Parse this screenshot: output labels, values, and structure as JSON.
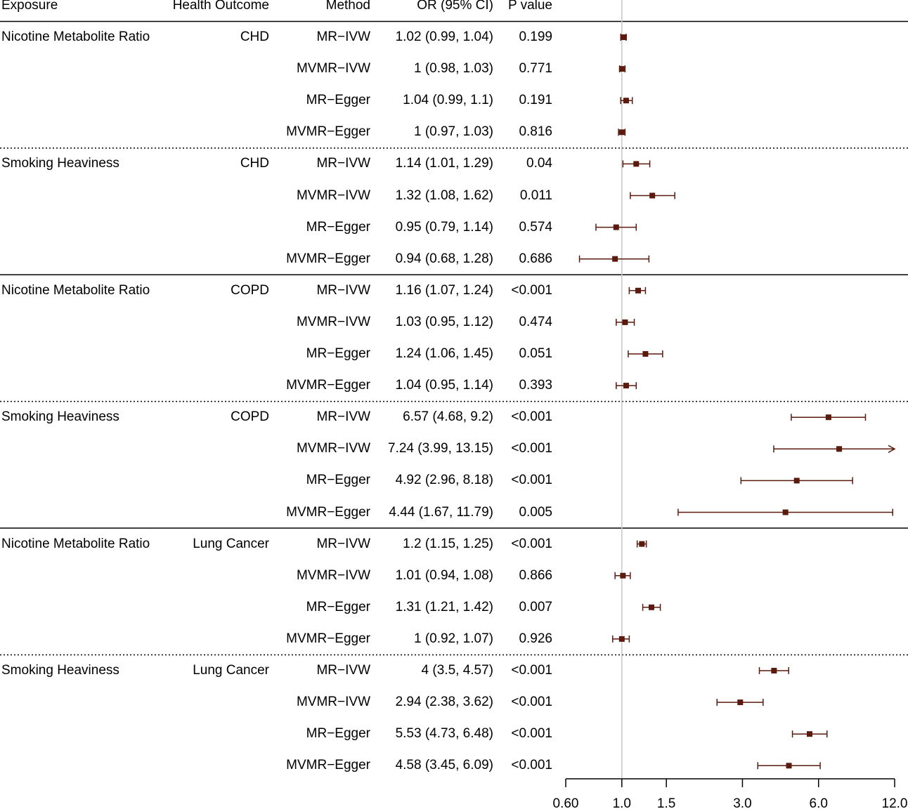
{
  "headers": {
    "exposure": "Exposure",
    "outcome": "Health Outcome",
    "method": "Method",
    "or": "OR (95% CI)",
    "p": "P value"
  },
  "chart_data": {
    "type": "forest",
    "x_scale": "log",
    "reference_line": 1.0,
    "xlim": [
      0.6,
      12.0
    ],
    "x_ticks": [
      0.6,
      1.0,
      1.5,
      3.0,
      6.0,
      12.0
    ],
    "x_tick_labels": [
      "0.60",
      "1.0",
      "1.5",
      "3.0",
      "6.0",
      "12.0"
    ],
    "rows": [
      {
        "exposure": "Nicotine Metabolite Ratio",
        "outcome": "CHD",
        "method": "MR−IVW",
        "or_text": "1.02 (0.99, 1.04)",
        "p": "0.199",
        "or": 1.02,
        "lo": 0.99,
        "hi": 1.04
      },
      {
        "exposure": "",
        "outcome": "",
        "method": "MVMR−IVW",
        "or_text": "1 (0.98, 1.03)",
        "p": "0.771",
        "or": 1.0,
        "lo": 0.98,
        "hi": 1.03
      },
      {
        "exposure": "",
        "outcome": "",
        "method": "MR−Egger",
        "or_text": "1.04 (0.99, 1.1)",
        "p": "0.191",
        "or": 1.04,
        "lo": 0.99,
        "hi": 1.1
      },
      {
        "exposure": "",
        "outcome": "",
        "method": "MVMR−Egger",
        "or_text": "1 (0.97, 1.03)",
        "p": "0.816",
        "or": 1.0,
        "lo": 0.97,
        "hi": 1.03
      },
      {
        "exposure": "Smoking Heaviness",
        "outcome": "CHD",
        "method": "MR−IVW",
        "or_text": "1.14 (1.01, 1.29)",
        "p": "0.04",
        "or": 1.14,
        "lo": 1.01,
        "hi": 1.29
      },
      {
        "exposure": "",
        "outcome": "",
        "method": "MVMR−IVW",
        "or_text": "1.32 (1.08, 1.62)",
        "p": "0.011",
        "or": 1.32,
        "lo": 1.08,
        "hi": 1.62
      },
      {
        "exposure": "",
        "outcome": "",
        "method": "MR−Egger",
        "or_text": "0.95 (0.79, 1.14)",
        "p": "0.574",
        "or": 0.95,
        "lo": 0.79,
        "hi": 1.14
      },
      {
        "exposure": "",
        "outcome": "",
        "method": "MVMR−Egger",
        "or_text": "0.94 (0.68, 1.28)",
        "p": "0.686",
        "or": 0.94,
        "lo": 0.68,
        "hi": 1.28
      },
      {
        "exposure": "Nicotine Metabolite Ratio",
        "outcome": "COPD",
        "method": "MR−IVW",
        "or_text": "1.16 (1.07, 1.24)",
        "p": "<0.001",
        "or": 1.16,
        "lo": 1.07,
        "hi": 1.24
      },
      {
        "exposure": "",
        "outcome": "",
        "method": "MVMR−IVW",
        "or_text": "1.03 (0.95, 1.12)",
        "p": "0.474",
        "or": 1.03,
        "lo": 0.95,
        "hi": 1.12
      },
      {
        "exposure": "",
        "outcome": "",
        "method": "MR−Egger",
        "or_text": "1.24 (1.06, 1.45)",
        "p": "0.051",
        "or": 1.24,
        "lo": 1.06,
        "hi": 1.45
      },
      {
        "exposure": "",
        "outcome": "",
        "method": "MVMR−Egger",
        "or_text": "1.04 (0.95, 1.14)",
        "p": "0.393",
        "or": 1.04,
        "lo": 0.95,
        "hi": 1.14
      },
      {
        "exposure": "Smoking Heaviness",
        "outcome": "COPD",
        "method": "MR−IVW",
        "or_text": "6.57 (4.68, 9.2)",
        "p": "<0.001",
        "or": 6.57,
        "lo": 4.68,
        "hi": 9.2
      },
      {
        "exposure": "",
        "outcome": "",
        "method": "MVMR−IVW",
        "or_text": "7.24 (3.99, 13.15)",
        "p": "<0.001",
        "or": 7.24,
        "lo": 3.99,
        "hi": 13.15
      },
      {
        "exposure": "",
        "outcome": "",
        "method": "MR−Egger",
        "or_text": "4.92 (2.96, 8.18)",
        "p": "<0.001",
        "or": 4.92,
        "lo": 2.96,
        "hi": 8.18
      },
      {
        "exposure": "",
        "outcome": "",
        "method": "MVMR−Egger",
        "or_text": "4.44 (1.67, 11.79)",
        "p": "0.005",
        "or": 4.44,
        "lo": 1.67,
        "hi": 11.79
      },
      {
        "exposure": "Nicotine Metabolite Ratio",
        "outcome": "Lung Cancer",
        "method": "MR−IVW",
        "or_text": "1.2 (1.15, 1.25)",
        "p": "<0.001",
        "or": 1.2,
        "lo": 1.15,
        "hi": 1.25
      },
      {
        "exposure": "",
        "outcome": "",
        "method": "MVMR−IVW",
        "or_text": "1.01 (0.94, 1.08)",
        "p": "0.866",
        "or": 1.01,
        "lo": 0.94,
        "hi": 1.08
      },
      {
        "exposure": "",
        "outcome": "",
        "method": "MR−Egger",
        "or_text": "1.31 (1.21, 1.42)",
        "p": "0.007",
        "or": 1.31,
        "lo": 1.21,
        "hi": 1.42
      },
      {
        "exposure": "",
        "outcome": "",
        "method": "MVMR−Egger",
        "or_text": "1 (0.92, 1.07)",
        "p": "0.926",
        "or": 1.0,
        "lo": 0.92,
        "hi": 1.07
      },
      {
        "exposure": "Smoking Heaviness",
        "outcome": "Lung Cancer",
        "method": "MR−IVW",
        "or_text": "4 (3.5, 4.57)",
        "p": "<0.001",
        "or": 4.0,
        "lo": 3.5,
        "hi": 4.57
      },
      {
        "exposure": "",
        "outcome": "",
        "method": "MVMR−IVW",
        "or_text": "2.94 (2.38, 3.62)",
        "p": "<0.001",
        "or": 2.94,
        "lo": 2.38,
        "hi": 3.62
      },
      {
        "exposure": "",
        "outcome": "",
        "method": "MR−Egger",
        "or_text": "5.53 (4.73, 6.48)",
        "p": "<0.001",
        "or": 5.53,
        "lo": 4.73,
        "hi": 6.48
      },
      {
        "exposure": "",
        "outcome": "",
        "method": "MVMR−Egger",
        "or_text": "4.58 (3.45, 6.09)",
        "p": "<0.001",
        "or": 4.58,
        "lo": 3.45,
        "hi": 6.09
      }
    ]
  },
  "colors": {
    "point": "#5a1a0e",
    "ci": "#5a1a0e",
    "reference_line": "#c8c8c8",
    "rule": "#000000"
  }
}
